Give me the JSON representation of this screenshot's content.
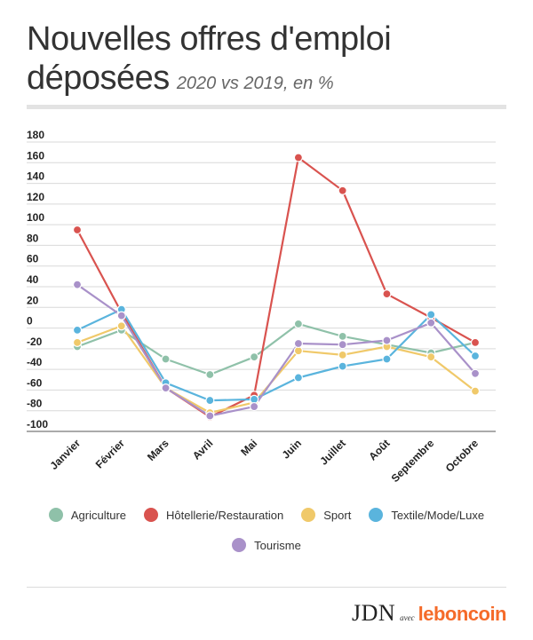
{
  "title": {
    "main_line1": "Nouvelles offres d'emploi",
    "main_line2": "déposées",
    "subtitle": "2020 vs 2019, en %"
  },
  "brand": {
    "jdn": "JDN",
    "avec": "avec",
    "partner": "leboncoin"
  },
  "chart_data": {
    "type": "line",
    "categories": [
      "Janvier",
      "Février",
      "Mars",
      "Avril",
      "Mai",
      "Juin",
      "Juillet",
      "Août",
      "Septembre",
      "Octobre"
    ],
    "y_ticks": [
      -100,
      -80,
      -60,
      -40,
      -20,
      0,
      20,
      40,
      60,
      80,
      100,
      120,
      140,
      160,
      180
    ],
    "ylim": [
      -100,
      180
    ],
    "grid": true,
    "legend_position": "bottom",
    "series": [
      {
        "name": "Agriculture",
        "color": "#8fc1a9",
        "values": [
          -18,
          -2,
          -30,
          -45,
          -28,
          4,
          -8,
          -16,
          -24,
          -14
        ]
      },
      {
        "name": "Hôtellerie/Restauration",
        "color": "#d9534f",
        "values": [
          95,
          15,
          -58,
          -86,
          -65,
          165,
          133,
          33,
          10,
          -14
        ]
      },
      {
        "name": "Sport",
        "color": "#f0c96a",
        "values": [
          -14,
          2,
          -58,
          -82,
          -72,
          -22,
          -26,
          -18,
          -28,
          -61
        ]
      },
      {
        "name": "Textile/Mode/Luxe",
        "color": "#5ab4dd",
        "values": [
          -2,
          18,
          -53,
          -70,
          -69,
          -48,
          -37,
          -30,
          13,
          -27
        ]
      },
      {
        "name": "Tourisme",
        "color": "#a991c9",
        "values": [
          42,
          12,
          -58,
          -85,
          -76,
          -15,
          -16,
          -12,
          5,
          -44
        ]
      }
    ]
  }
}
